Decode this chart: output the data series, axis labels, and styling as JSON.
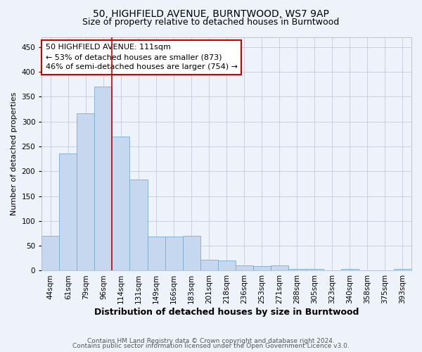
{
  "title_line1": "50, HIGHFIELD AVENUE, BURNTWOOD, WS7 9AP",
  "title_line2": "Size of property relative to detached houses in Burntwood",
  "xlabel": "Distribution of detached houses by size in Burntwood",
  "ylabel": "Number of detached properties",
  "categories": [
    "44sqm",
    "61sqm",
    "79sqm",
    "96sqm",
    "114sqm",
    "131sqm",
    "149sqm",
    "166sqm",
    "183sqm",
    "201sqm",
    "218sqm",
    "236sqm",
    "253sqm",
    "271sqm",
    "288sqm",
    "305sqm",
    "323sqm",
    "340sqm",
    "358sqm",
    "375sqm",
    "393sqm"
  ],
  "values": [
    70,
    236,
    316,
    370,
    270,
    183,
    68,
    68,
    70,
    22,
    20,
    10,
    9,
    11,
    4,
    3,
    0,
    3,
    0,
    0,
    4
  ],
  "bar_color": "#c5d8ef",
  "bar_edge_color": "#7aaed0",
  "vline_x": 3.5,
  "vline_color": "#cc0000",
  "annotation_text": "50 HIGHFIELD AVENUE: 111sqm\n← 53% of detached houses are smaller (873)\n46% of semi-detached houses are larger (754) →",
  "annotation_box_facecolor": "#ffffff",
  "annotation_box_edgecolor": "#cc0000",
  "ylim": [
    0,
    470
  ],
  "yticks": [
    0,
    50,
    100,
    150,
    200,
    250,
    300,
    350,
    400,
    450
  ],
  "background_color": "#eef2fb",
  "grid_color": "#c8d0e0",
  "title_fontsize": 10,
  "subtitle_fontsize": 9,
  "ylabel_fontsize": 8,
  "xlabel_fontsize": 9,
  "tick_fontsize": 7.5,
  "annotation_fontsize": 8,
  "footer_fontsize": 6.5,
  "footer_line1": "Contains HM Land Registry data © Crown copyright and database right 2024.",
  "footer_line2": "Contains public sector information licensed under the Open Government Licence v3.0."
}
